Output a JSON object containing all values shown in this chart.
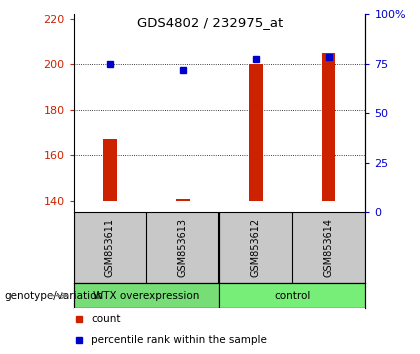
{
  "title": "GDS4802 / 232975_at",
  "samples": [
    "GSM853611",
    "GSM853613",
    "GSM853612",
    "GSM853614"
  ],
  "counts": [
    167,
    141,
    200,
    205
  ],
  "percentiles": [
    75,
    72,
    78,
    79
  ],
  "baseline": 140,
  "ylim_left": [
    135,
    222
  ],
  "yticks_left": [
    140,
    160,
    180,
    200,
    220
  ],
  "ylim_right": [
    0,
    100
  ],
  "yticks_right": [
    0,
    25,
    50,
    75,
    100
  ],
  "ytick_labels_right": [
    "0",
    "25",
    "50",
    "75",
    "100%"
  ],
  "bar_color": "#cc2200",
  "marker_color": "#0000cc",
  "groups": [
    {
      "label": "WTX overexpression",
      "indices": [
        0,
        1
      ],
      "color": "#77dd77"
    },
    {
      "label": "control",
      "indices": [
        2,
        3
      ],
      "color": "#77ee77"
    }
  ],
  "group_label": "genotype/variation",
  "legend_count_label": "count",
  "legend_pct_label": "percentile rank within the sample",
  "background_color": "#ffffff",
  "tick_label_area_color": "#c8c8c8"
}
